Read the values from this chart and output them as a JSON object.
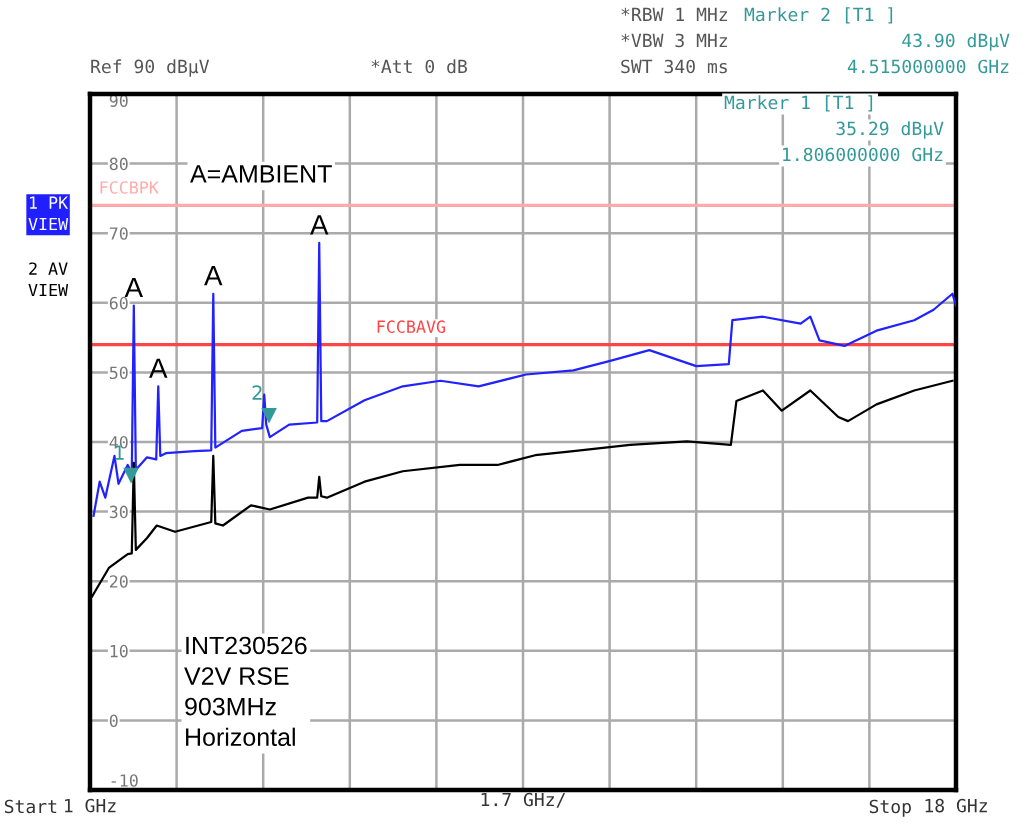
{
  "chart_data": {
    "type": "line",
    "xlim": [
      1,
      18
    ],
    "ylim": [
      -10,
      90
    ],
    "xticks": [
      {
        "value": 1,
        "label": "1 GHz"
      },
      {
        "value": 2.7,
        "label": null
      },
      {
        "value": 4.4,
        "label": null
      },
      {
        "value": 6.1,
        "label": null
      },
      {
        "value": 7.8,
        "label": null
      },
      {
        "value": 9.5,
        "label": null
      },
      {
        "value": 11.2,
        "label": null
      },
      {
        "value": 12.9,
        "label": null
      },
      {
        "value": 14.6,
        "label": null
      },
      {
        "value": 16.3,
        "label": null
      },
      {
        "value": 18,
        "label": "18 GHz"
      }
    ],
    "yticks": [
      {
        "value": -10,
        "label": "-10"
      },
      0,
      10,
      20,
      30,
      40,
      50,
      60,
      70,
      80,
      90
    ],
    "grid": true,
    "marker": "none",
    "line_style": "solid",
    "series": [
      {
        "color": "#2222ff",
        "x": [
          1.07,
          1.19,
          1.3,
          1.48,
          1.56,
          1.74,
          1.82,
          1.86,
          1.9,
          2.12,
          2.3,
          2.34,
          2.38,
          2.49,
          3.05,
          3.38,
          3.42,
          3.46,
          3.98,
          4.38,
          4.42,
          4.46,
          4.53,
          4.91,
          5.46,
          5.5,
          5.54,
          5.65,
          6.39,
          7.14,
          7.88,
          8.63,
          9.56,
          10.49,
          11.23,
          11.98,
          12.9,
          13.54,
          13.61,
          14.21,
          14.95,
          15.14,
          15.32,
          15.81,
          16.44,
          17.18,
          17.56,
          17.93,
          18.0
        ],
        "values": [
          29.4,
          34.3,
          32,
          38,
          34,
          36.7,
          35.5,
          59.6,
          36,
          37.8,
          37.5,
          48,
          38,
          38.4,
          38.7,
          38.8,
          61.3,
          39.2,
          41.6,
          42,
          46.8,
          42.5,
          40.7,
          42.5,
          42.8,
          68.6,
          43,
          43,
          46,
          48,
          48.8,
          48,
          49.7,
          50.3,
          51.7,
          53.2,
          50.9,
          51.2,
          57.5,
          58,
          57,
          58,
          54.6,
          53.8,
          56,
          57.5,
          59,
          61.3,
          59.6
        ]
      },
      {
        "color": "#000000",
        "x": [
          1.04,
          1.37,
          1.74,
          1.82,
          1.86,
          1.9,
          2.12,
          2.31,
          2.67,
          3.38,
          3.42,
          3.46,
          3.61,
          4.16,
          4.53,
          5.28,
          5.46,
          5.5,
          5.54,
          5.65,
          6.39,
          7.14,
          8.26,
          9.0,
          9.74,
          10.49,
          11.6,
          12.72,
          13.58,
          13.69,
          14.21,
          14.58,
          15.14,
          15.69,
          15.88,
          16.44,
          17.18,
          17.93
        ],
        "values": [
          17.8,
          21.9,
          23.9,
          24,
          37,
          24.5,
          26.2,
          28,
          27.1,
          28.5,
          38,
          28.3,
          28,
          30.9,
          30.3,
          32,
          32,
          35,
          32.2,
          32,
          34.3,
          35.8,
          36.7,
          36.7,
          38.1,
          38.7,
          39.6,
          40.1,
          39.6,
          45.9,
          47.4,
          44.5,
          47.4,
          43.6,
          43,
          45.4,
          47.4,
          48.8
        ]
      }
    ],
    "ref_lines": [
      {
        "axis": "y",
        "value": 74,
        "label": "FCCBPK",
        "color": "#ffaaaa"
      },
      {
        "axis": "y",
        "value": 54,
        "label": "FCCBAVG",
        "color": "#ff4444"
      }
    ],
    "xlabel": "1.7 GHz/",
    "annotations": [
      "Start",
      "Stop",
      "*RBW 1 MHz",
      "*VBW 3 MHz",
      "SWT 340 ms",
      "Ref 90 dBµV",
      "*Att 0 dB",
      "Marker 2 [T1 ]",
      "43.90 dBµV",
      "4.515000000 GHz",
      "Marker 1 [T1 ]",
      "35.29 dBµV",
      "1.806000000 GHz",
      "1 PK\nVIEW",
      "2 AV\nVIEW",
      "A=AMBIENT",
      "INT230526\nV2V RSE\n903MHz\nHorizontal",
      {
        "text": "A",
        "x": 1.86,
        "y": 59.6
      },
      {
        "text": "A",
        "x": 2.34,
        "y": 48
      },
      {
        "text": "A",
        "x": 3.42,
        "y": 61.3
      },
      {
        "text": "A",
        "x": 5.5,
        "y": 68.6
      },
      {
        "text": "1",
        "x": 1.806,
        "y": 35.29
      },
      {
        "text": "2",
        "x": 4.515,
        "y": 43.9
      }
    ]
  }
}
